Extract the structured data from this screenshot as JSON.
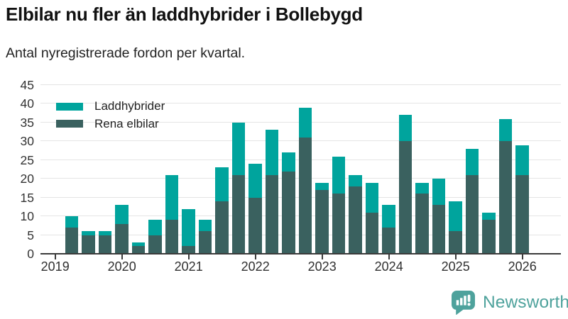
{
  "header": {
    "title": "Elbilar nu fler än laddhybrider i Bollebygd",
    "subtitle": "Antal nyregistrerade fordon per kvartal."
  },
  "legend": {
    "items": [
      {
        "label": "Laddhybrider",
        "color": "#00a49d"
      },
      {
        "label": "Rena elbilar",
        "color": "#3a615f"
      }
    ]
  },
  "chart_data": {
    "type": "bar",
    "stacked": true,
    "title": "Elbilar nu fler än laddhybrider i Bollebygd",
    "subtitle": "Antal nyregistrerade fordon per kvartal.",
    "x": [
      "2019 Q1",
      "2019 Q2",
      "2019 Q3",
      "2019 Q4",
      "2020 Q1",
      "2020 Q2",
      "2020 Q3",
      "2020 Q4",
      "2021 Q1",
      "2021 Q2",
      "2021 Q3",
      "2021 Q4",
      "2022 Q1",
      "2022 Q2",
      "2022 Q3",
      "2022 Q4",
      "2023 Q1",
      "2023 Q2",
      "2023 Q3",
      "2023 Q4",
      "2024 Q1",
      "2024 Q2",
      "2024 Q3",
      "2024 Q4",
      "2025 Q1",
      "2025 Q2",
      "2025 Q3",
      "2025 Q4",
      "2026 Q1"
    ],
    "series": [
      {
        "name": "Rena elbilar",
        "color": "#3a615f",
        "values": [
          0,
          7,
          5,
          5,
          8,
          2,
          5,
          9,
          2,
          6,
          14,
          21,
          15,
          21,
          22,
          31,
          17,
          16,
          18,
          11,
          7,
          30,
          16,
          13,
          6,
          21,
          9,
          30,
          21
        ]
      },
      {
        "name": "Laddhybrider",
        "color": "#00a49d",
        "values": [
          0,
          3,
          1,
          1,
          5,
          1,
          4,
          12,
          10,
          3,
          9,
          14,
          9,
          12,
          5,
          8,
          2,
          10,
          3,
          8,
          6,
          7,
          3,
          7,
          8,
          7,
          2,
          6,
          8
        ]
      }
    ],
    "totals": [
      0,
      10,
      6,
      6,
      13,
      3,
      9,
      21,
      12,
      9,
      23,
      35,
      24,
      33,
      27,
      39,
      19,
      26,
      21,
      19,
      13,
      37,
      19,
      20,
      14,
      28,
      11,
      36,
      29
    ],
    "xticks": [
      "2019",
      "2020",
      "2021",
      "2022",
      "2023",
      "2024",
      "2025",
      "2026"
    ],
    "yticks": [
      0,
      5,
      10,
      15,
      20,
      25,
      30,
      35,
      40,
      45
    ],
    "ylim": [
      0,
      45
    ],
    "grid": true,
    "legend_position": "top-left"
  },
  "footer": {
    "brand": "Newsworthy",
    "brand_color": "#4ea29c",
    "logo_icon": "bar-chart-speech-bubble-icon"
  }
}
